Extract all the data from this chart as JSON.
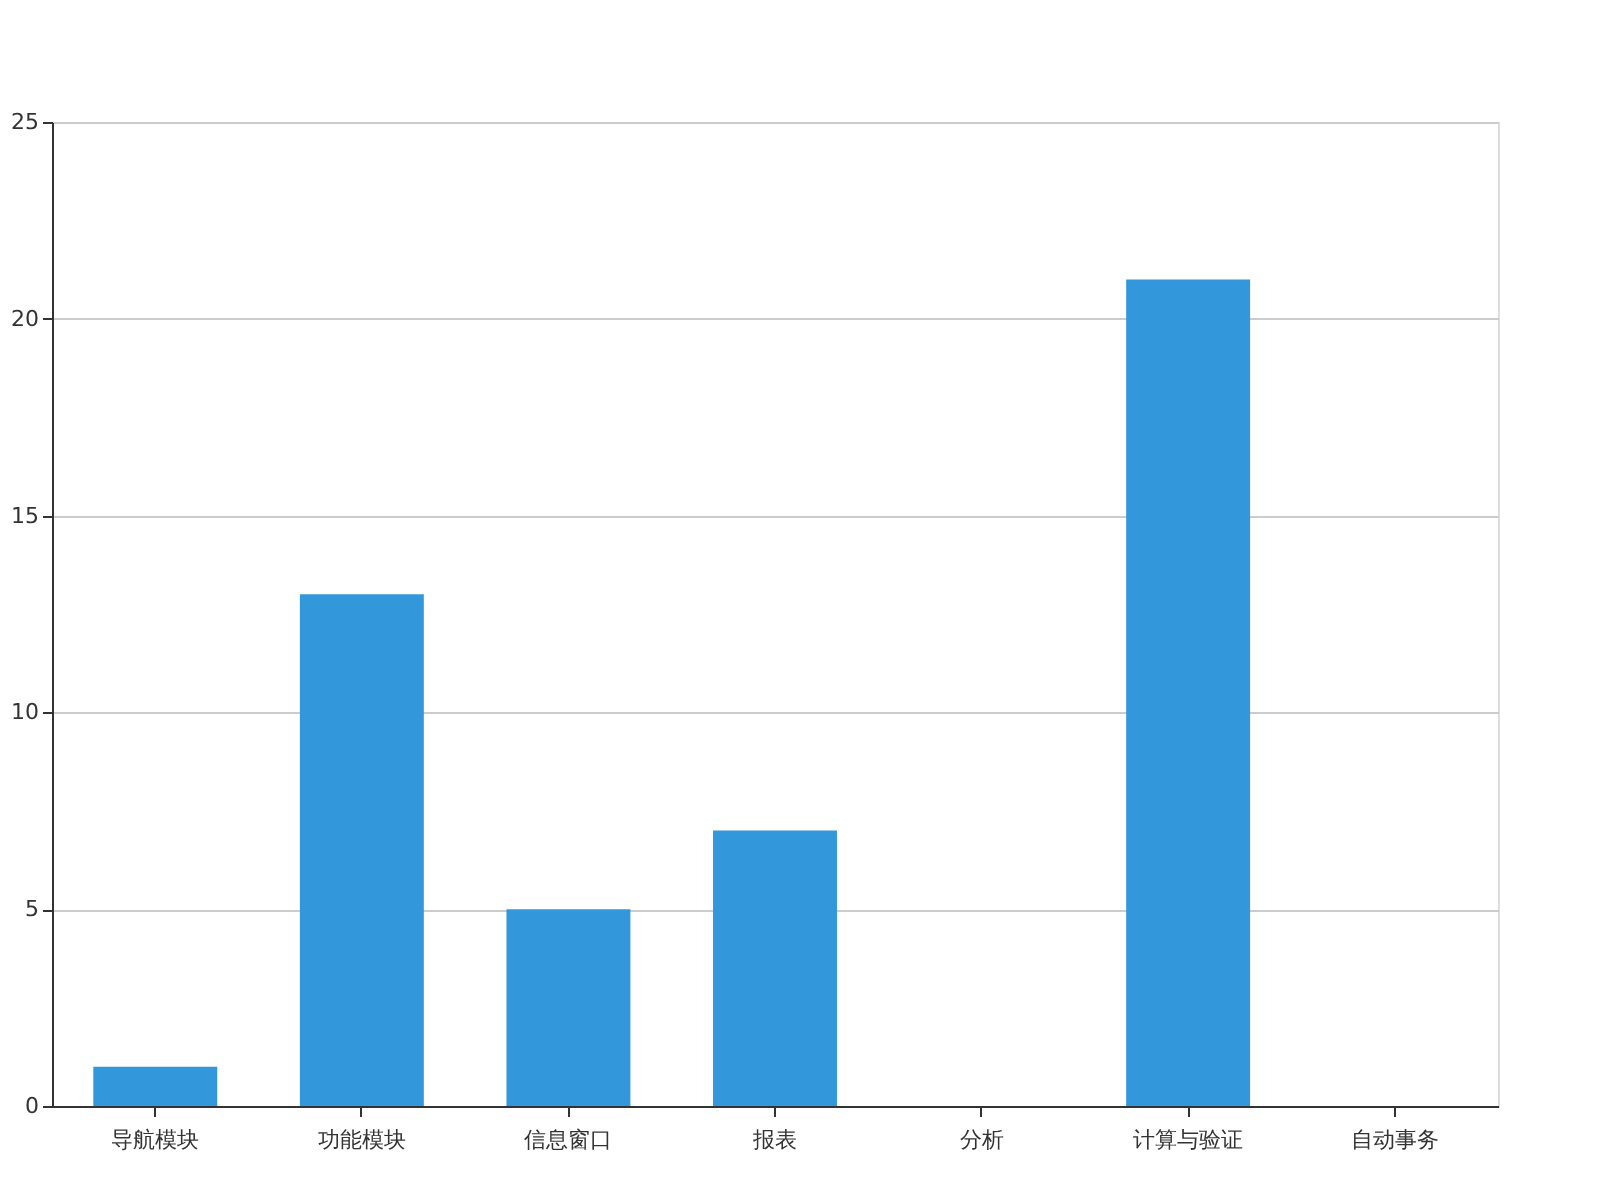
{
  "chart_data": {
    "type": "bar",
    "categories": [
      "导航模块",
      "功能模块",
      "信息窗口",
      "报表",
      "分析",
      "计算与验证",
      "自动事务"
    ],
    "values": [
      1,
      13,
      5,
      7,
      0,
      21,
      0
    ],
    "color": "#3398db",
    "ylim": [
      0,
      25
    ],
    "yticks": [
      0,
      5,
      10,
      15,
      20,
      25
    ],
    "grid": "y"
  }
}
